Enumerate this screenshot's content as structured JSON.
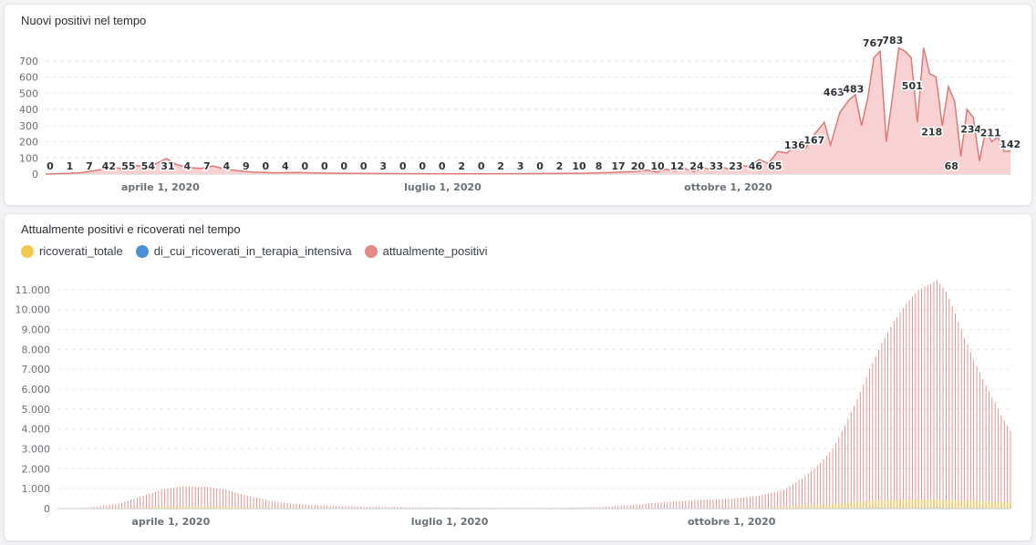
{
  "panels": [
    {
      "title": "Nuovi positivi nel tempo"
    },
    {
      "title": "Attualmente positivi e ricoverati nel tempo",
      "legend": [
        {
          "label": "ricoverati_totale",
          "color": "#f2c94c"
        },
        {
          "label": "di_cui_ricoverati_in_terapia_intensiva",
          "color": "#4a90d9"
        },
        {
          "label": "attualmente_positivi",
          "color": "#e88989"
        }
      ]
    }
  ],
  "colors": {
    "area_fill": "#f8d2d2",
    "area_line": "#e07878",
    "positivi_bar": "#e88989",
    "ricoverati_bar": "#f5d27a",
    "grid": "#e6e8ea"
  },
  "chart_data": [
    {
      "type": "area",
      "title": "Nuovi positivi nel tempo",
      "x_start": "2020-02-24",
      "x_end": "2020-12-31",
      "ylim": [
        0,
        800
      ],
      "y_ticks": [
        "0",
        "100",
        "200",
        "300",
        "400",
        "500",
        "600",
        "700"
      ],
      "x_ticks": [
        {
          "date": "2020-04-01",
          "label": "aprile 1, 2020"
        },
        {
          "date": "2020-07-01",
          "label": "luglio 1, 2020"
        },
        {
          "date": "2020-10-01",
          "label": "ottobre 1, 2020"
        }
      ],
      "grid": true,
      "series": [
        {
          "name": "Nuovi positivi",
          "points": [
            [
              "2020-02-24",
              0
            ],
            [
              "2020-03-01",
              3
            ],
            [
              "2020-03-06",
              8
            ],
            [
              "2020-03-12",
              25
            ],
            [
              "2020-03-16",
              45
            ],
            [
              "2020-03-19",
              35
            ],
            [
              "2020-03-22",
              55
            ],
            [
              "2020-03-26",
              50
            ],
            [
              "2020-03-30",
              60
            ],
            [
              "2020-04-03",
              95
            ],
            [
              "2020-04-06",
              60
            ],
            [
              "2020-04-10",
              40
            ],
            [
              "2020-04-14",
              35
            ],
            [
              "2020-04-18",
              50
            ],
            [
              "2020-04-22",
              30
            ],
            [
              "2020-04-26",
              20
            ],
            [
              "2020-05-01",
              12
            ],
            [
              "2020-05-08",
              8
            ],
            [
              "2020-05-15",
              10
            ],
            [
              "2020-05-22",
              6
            ],
            [
              "2020-06-01",
              4
            ],
            [
              "2020-06-15",
              3
            ],
            [
              "2020-07-01",
              2
            ],
            [
              "2020-07-15",
              2
            ],
            [
              "2020-08-01",
              3
            ],
            [
              "2020-08-15",
              5
            ],
            [
              "2020-08-25",
              10
            ],
            [
              "2020-09-01",
              15
            ],
            [
              "2020-09-05",
              25
            ],
            [
              "2020-09-08",
              12
            ],
            [
              "2020-09-11",
              30
            ],
            [
              "2020-09-14",
              18
            ],
            [
              "2020-09-17",
              35
            ],
            [
              "2020-09-20",
              15
            ],
            [
              "2020-09-23",
              40
            ],
            [
              "2020-09-26",
              22
            ],
            [
              "2020-09-29",
              45
            ],
            [
              "2020-10-02",
              25
            ],
            [
              "2020-10-05",
              55
            ],
            [
              "2020-10-08",
              45
            ],
            [
              "2020-10-11",
              90
            ],
            [
              "2020-10-14",
              65
            ],
            [
              "2020-10-17",
              140
            ],
            [
              "2020-10-20",
              130
            ],
            [
              "2020-10-23",
              190
            ],
            [
              "2020-10-26",
              160
            ],
            [
              "2020-10-29",
              250
            ],
            [
              "2020-11-01",
              320
            ],
            [
              "2020-11-03",
              180
            ],
            [
              "2020-11-06",
              380
            ],
            [
              "2020-11-09",
              460
            ],
            [
              "2020-11-11",
              490
            ],
            [
              "2020-11-13",
              300
            ],
            [
              "2020-11-15",
              470
            ],
            [
              "2020-11-17",
              720
            ],
            [
              "2020-11-19",
              760
            ],
            [
              "2020-11-21",
              200
            ],
            [
              "2020-11-23",
              480
            ],
            [
              "2020-11-25",
              780
            ],
            [
              "2020-11-27",
              760
            ],
            [
              "2020-11-29",
              720
            ],
            [
              "2020-12-01",
              320
            ],
            [
              "2020-12-03",
              780
            ],
            [
              "2020-12-05",
              620
            ],
            [
              "2020-12-07",
              600
            ],
            [
              "2020-12-09",
              300
            ],
            [
              "2020-12-11",
              540
            ],
            [
              "2020-12-13",
              450
            ],
            [
              "2020-12-15",
              110
            ],
            [
              "2020-12-17",
              400
            ],
            [
              "2020-12-19",
              350
            ],
            [
              "2020-12-21",
              80
            ],
            [
              "2020-12-23",
              270
            ],
            [
              "2020-12-25",
              200
            ],
            [
              "2020-12-27",
              230
            ],
            [
              "2020-12-29",
              140
            ],
            [
              "2020-12-31",
              142
            ]
          ]
        }
      ],
      "data_labels": [
        {
          "date": "2020-02-24",
          "v": 0,
          "label": "0"
        },
        {
          "date": "2020-03-03",
          "v": 1,
          "label": "1"
        },
        {
          "date": "2020-03-11",
          "v": 7,
          "label": "7"
        },
        {
          "date": "2020-03-19",
          "v": 42,
          "label": "42"
        },
        {
          "date": "2020-03-27",
          "v": 55,
          "label": "55"
        },
        {
          "date": "2020-04-04",
          "v": 54,
          "label": "54"
        },
        {
          "date": "2020-04-12",
          "v": 31,
          "label": "31"
        },
        {
          "date": "2020-04-20",
          "v": 4,
          "label": "4"
        },
        {
          "date": "2020-04-28",
          "v": 7,
          "label": "7"
        },
        {
          "date": "2020-05-06",
          "v": 4,
          "label": "4"
        },
        {
          "date": "2020-05-14",
          "v": 9,
          "label": "9"
        },
        {
          "date": "2020-05-22",
          "v": 0,
          "label": "0"
        },
        {
          "date": "2020-05-30",
          "v": 4,
          "label": "4"
        },
        {
          "date": "2020-06-07",
          "v": 0,
          "label": "0"
        },
        {
          "date": "2020-06-15",
          "v": 0,
          "label": "0"
        },
        {
          "date": "2020-06-23",
          "v": 0,
          "label": "0"
        },
        {
          "date": "2020-07-01",
          "v": 0,
          "label": "0"
        },
        {
          "date": "2020-07-09",
          "v": 3,
          "label": "3"
        },
        {
          "date": "2020-07-17",
          "v": 0,
          "label": "0"
        },
        {
          "date": "2020-07-25",
          "v": 0,
          "label": "0"
        },
        {
          "date": "2020-08-02",
          "v": 0,
          "label": "0"
        },
        {
          "date": "2020-08-10",
          "v": 2,
          "label": "2"
        },
        {
          "date": "2020-08-18",
          "v": 0,
          "label": "0"
        },
        {
          "date": "2020-08-26",
          "v": 2,
          "label": "2"
        },
        {
          "date": "2020-09-03",
          "v": 3,
          "label": "3"
        },
        {
          "date": "2020-09-11",
          "v": 0,
          "label": "0"
        },
        {
          "date": "2020-09-19",
          "v": 2,
          "label": "2"
        },
        {
          "date": "2020-09-27",
          "v": 10,
          "label": "10"
        },
        {
          "date": "2020-10-05",
          "v": 8,
          "label": "8"
        },
        {
          "date": "2020-10-13",
          "v": 17,
          "label": "17"
        },
        {
          "date": "2020-10-21",
          "v": 20,
          "label": "20"
        },
        {
          "date": "2020-10-29",
          "v": 10,
          "label": "10"
        },
        {
          "date": "2020-11-06",
          "v": 12,
          "label": "12"
        },
        {
          "date": "2020-11-14",
          "v": 24,
          "label": "24"
        },
        {
          "date": "2020-11-22",
          "v": 33,
          "label": "33"
        },
        {
          "date": "2020-11-30",
          "v": 23,
          "label": "23"
        },
        {
          "date": "2020-12-08",
          "v": 46,
          "label": "46"
        },
        {
          "date": "2020-12-16",
          "v": 65,
          "label": "65"
        },
        {
          "date": "2020-12-24",
          "v": 136,
          "label": "136"
        },
        {
          "date": "2021-01-01",
          "v": 167,
          "label": "167"
        },
        {
          "date": "2021-01-09",
          "v": 463,
          "label": "463"
        },
        {
          "date": "2021-01-17",
          "v": 483,
          "label": "483"
        },
        {
          "date": "2021-01-25",
          "v": 767,
          "label": "767"
        },
        {
          "date": "2021-02-02",
          "v": 783,
          "label": "783"
        },
        {
          "date": "2021-02-10",
          "v": 501,
          "label": "501"
        },
        {
          "date": "2021-02-18",
          "v": 218,
          "label": "218"
        },
        {
          "date": "2021-02-26",
          "v": 68,
          "label": "68"
        },
        {
          "date": "2021-03-06",
          "v": 234,
          "label": "234"
        },
        {
          "date": "2021-03-14",
          "v": 211,
          "label": "211"
        },
        {
          "date": "2021-03-22",
          "v": 142,
          "label": "142"
        }
      ]
    },
    {
      "type": "bar",
      "title": "Attualmente positivi e ricoverati nel tempo",
      "x_start": "2020-02-24",
      "x_end": "2020-12-31",
      "ylim": [
        0,
        11500
      ],
      "y_ticks": [
        "0",
        "1.000",
        "2.000",
        "3.000",
        "4.000",
        "5.000",
        "6.000",
        "7.000",
        "8.000",
        "9.000",
        "10.000",
        "11.000"
      ],
      "x_ticks": [
        {
          "date": "2020-04-01",
          "label": "aprile 1, 2020"
        },
        {
          "date": "2020-07-01",
          "label": "luglio 1, 2020"
        },
        {
          "date": "2020-10-01",
          "label": "ottobre 1, 2020"
        }
      ],
      "grid": true,
      "legend_position": "top-left",
      "series": [
        {
          "name": "attualmente_positivi",
          "points": [
            [
              "2020-02-24",
              0
            ],
            [
              "2020-03-05",
              40
            ],
            [
              "2020-03-15",
              250
            ],
            [
              "2020-03-22",
              600
            ],
            [
              "2020-03-29",
              950
            ],
            [
              "2020-04-05",
              1120
            ],
            [
              "2020-04-12",
              1100
            ],
            [
              "2020-04-19",
              950
            ],
            [
              "2020-04-26",
              650
            ],
            [
              "2020-05-03",
              400
            ],
            [
              "2020-05-10",
              250
            ],
            [
              "2020-05-20",
              150
            ],
            [
              "2020-06-01",
              90
            ],
            [
              "2020-06-20",
              60
            ],
            [
              "2020-07-10",
              40
            ],
            [
              "2020-07-25",
              30
            ],
            [
              "2020-08-10",
              45
            ],
            [
              "2020-08-20",
              80
            ],
            [
              "2020-08-30",
              180
            ],
            [
              "2020-09-08",
              320
            ],
            [
              "2020-09-20",
              430
            ],
            [
              "2020-10-01",
              500
            ],
            [
              "2020-10-10",
              650
            ],
            [
              "2020-10-18",
              950
            ],
            [
              "2020-10-24",
              1500
            ],
            [
              "2020-10-30",
              2300
            ],
            [
              "2020-11-03",
              3000
            ],
            [
              "2020-11-07",
              4200
            ],
            [
              "2020-11-11",
              5500
            ],
            [
              "2020-11-15",
              7000
            ],
            [
              "2020-11-19",
              8300
            ],
            [
              "2020-11-23",
              9400
            ],
            [
              "2020-11-27",
              10300
            ],
            [
              "2020-12-01",
              11000
            ],
            [
              "2020-12-05",
              11300
            ],
            [
              "2020-12-07",
              11500
            ],
            [
              "2020-12-10",
              10900
            ],
            [
              "2020-12-13",
              9800
            ],
            [
              "2020-12-16",
              8600
            ],
            [
              "2020-12-19",
              7500
            ],
            [
              "2020-12-22",
              6500
            ],
            [
              "2020-12-25",
              5600
            ],
            [
              "2020-12-28",
              4700
            ],
            [
              "2020-12-31",
              3900
            ]
          ]
        },
        {
          "name": "ricoverati_totale",
          "points": [
            [
              "2020-02-24",
              0
            ],
            [
              "2020-03-15",
              30
            ],
            [
              "2020-04-01",
              120
            ],
            [
              "2020-04-15",
              110
            ],
            [
              "2020-05-01",
              60
            ],
            [
              "2020-06-01",
              15
            ],
            [
              "2020-08-01",
              5
            ],
            [
              "2020-09-15",
              20
            ],
            [
              "2020-10-15",
              60
            ],
            [
              "2020-11-01",
              200
            ],
            [
              "2020-11-15",
              380
            ],
            [
              "2020-12-01",
              460
            ],
            [
              "2020-12-15",
              420
            ],
            [
              "2020-12-31",
              320
            ]
          ]
        },
        {
          "name": "di_cui_ricoverati_in_terapia_intensiva",
          "points": [
            [
              "2020-02-24",
              0
            ],
            [
              "2020-04-01",
              20
            ],
            [
              "2020-06-01",
              2
            ],
            [
              "2020-10-01",
              5
            ],
            [
              "2020-11-15",
              45
            ],
            [
              "2020-12-01",
              55
            ],
            [
              "2020-12-31",
              35
            ]
          ]
        }
      ]
    }
  ]
}
